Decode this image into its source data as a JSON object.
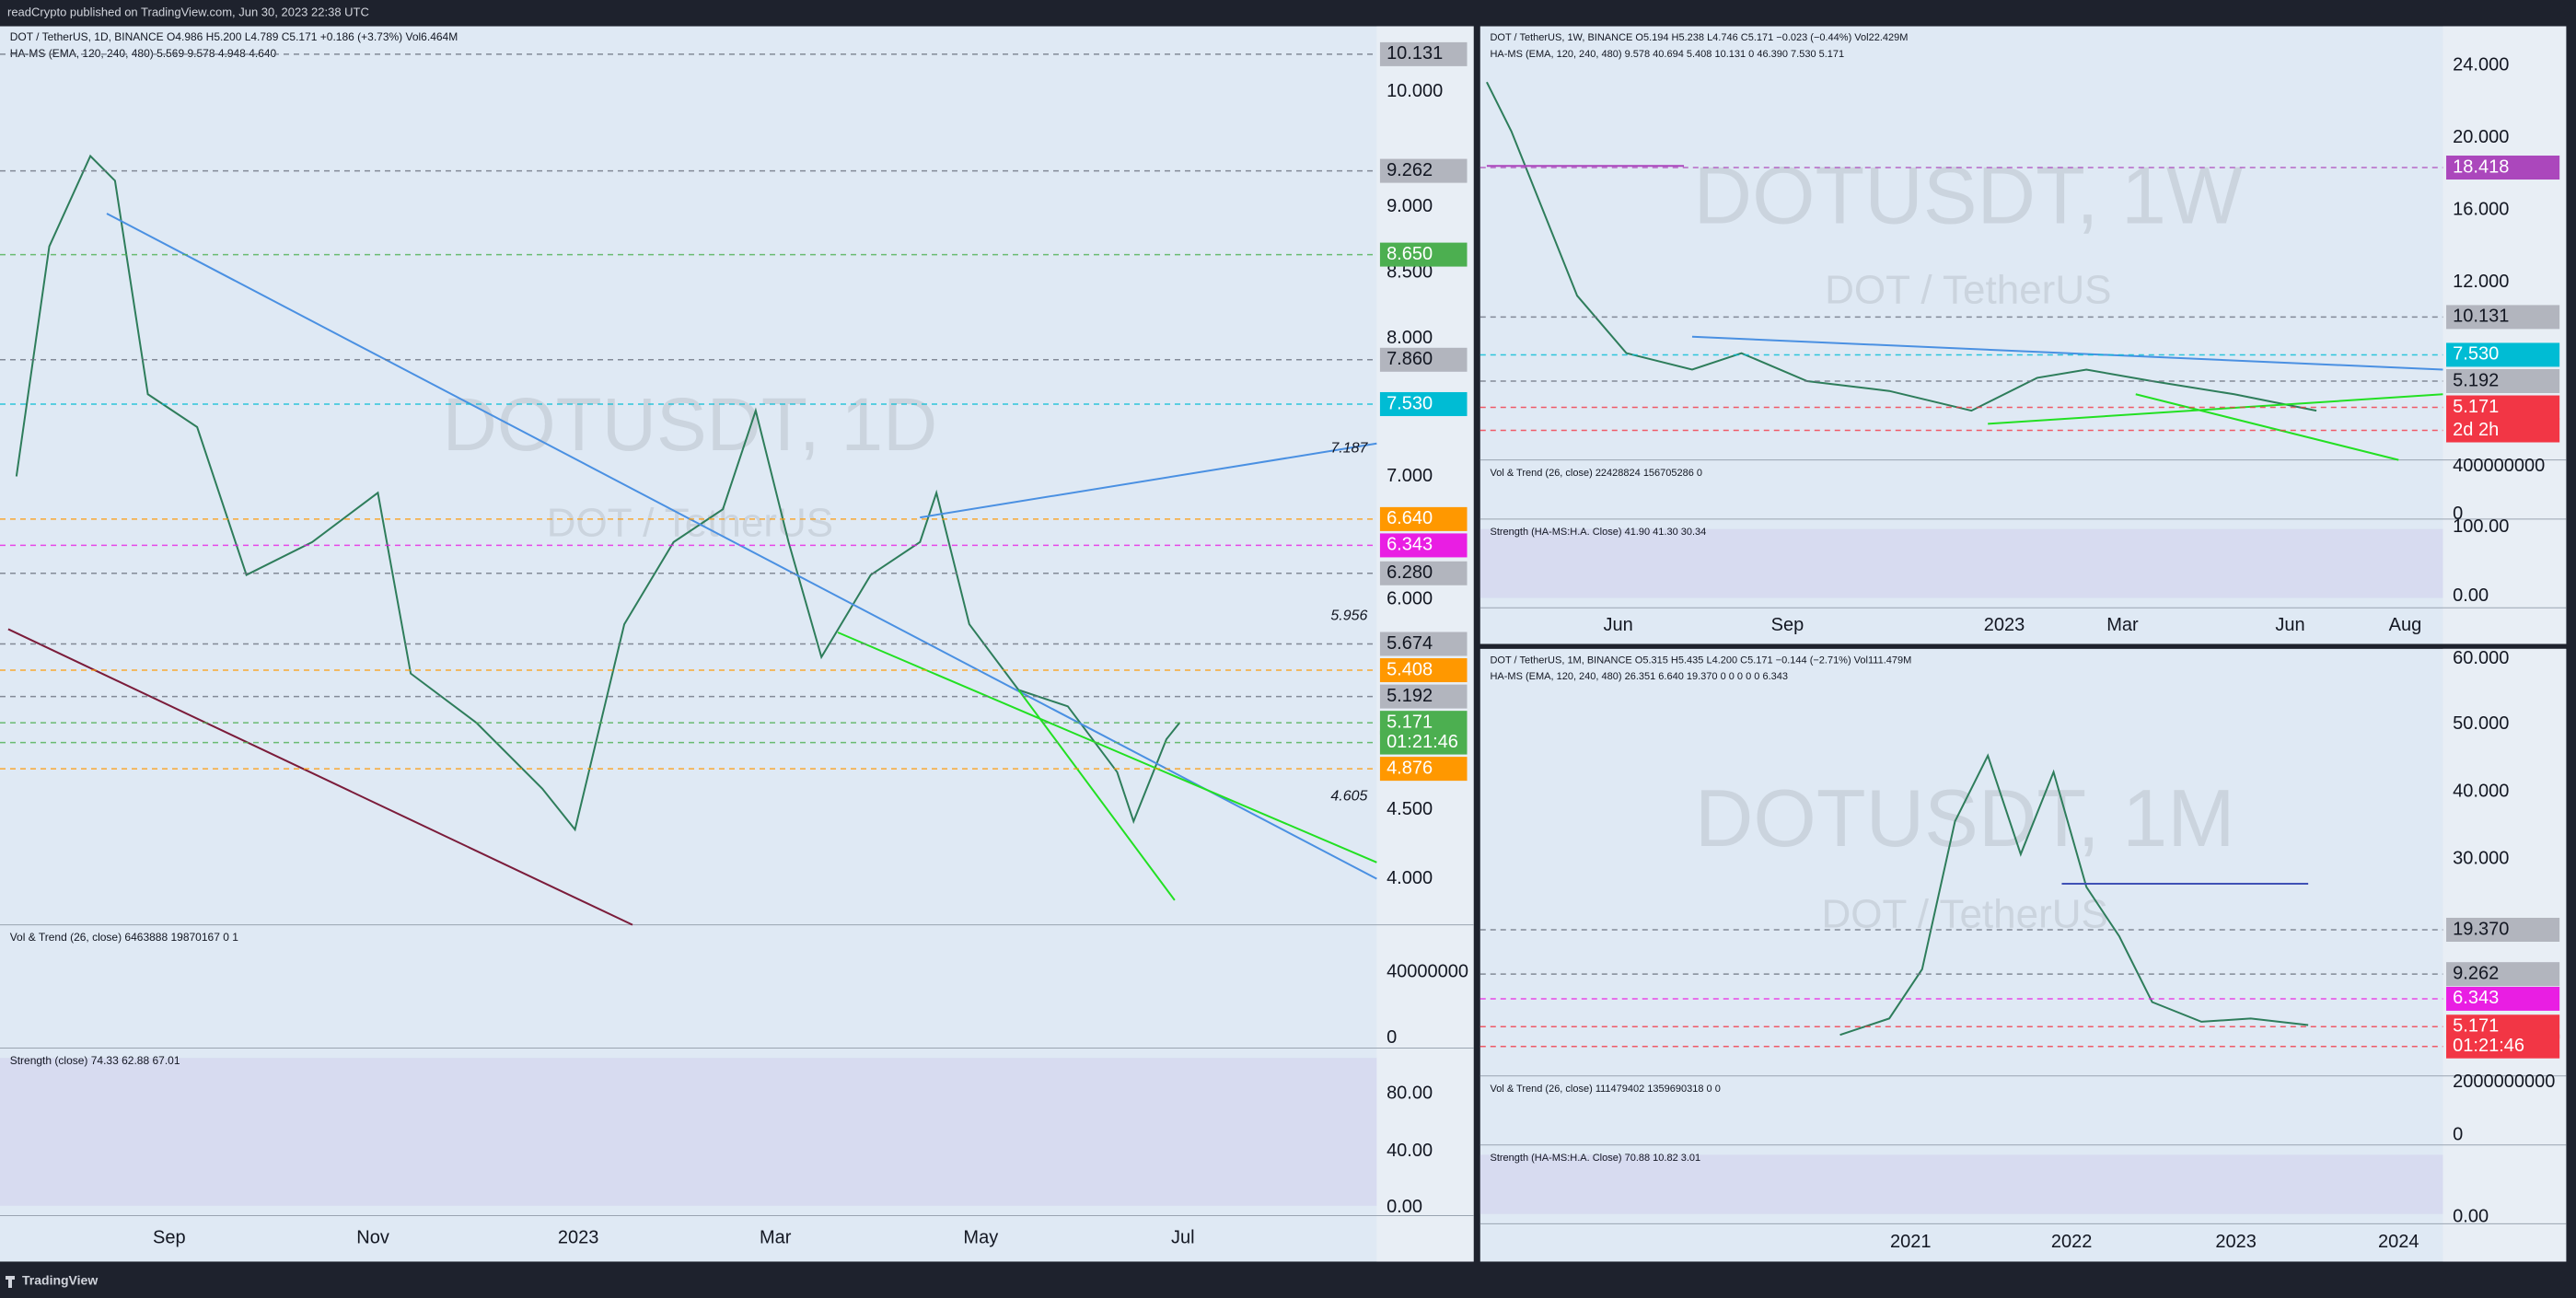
{
  "header": {
    "publisher": "readCrypto published on TradingView.com, Jun 30, 2023 22:38 UTC"
  },
  "panels": [
    {
      "legend": [
        "DOT / TetherUS, 1D, BINANCE  O4.986 H5.200 L4.789 C5.171 +0.186 (+3.73%) Vol6.464M",
        "HA-MS (EMA, 120, 240, 480)  5.569  9.578  4.948  4.640"
      ],
      "watermark": "DOTUSDT, 1D",
      "watermark_sub": "DOT / TetherUS",
      "price_labels": [
        {
          "text": "10.131",
          "color": "#b2b5be"
        },
        {
          "text": "9.262",
          "color": "#b2b5be"
        },
        {
          "text": "8.650",
          "color": "#4caf50"
        },
        {
          "text": "7.860",
          "color": "#b2b5be"
        },
        {
          "text": "7.530",
          "color": "#00bcd4"
        },
        {
          "text": "6.640",
          "color": "#ff9800"
        },
        {
          "text": "6.343",
          "color": "#e91ee3"
        },
        {
          "text": "6.280",
          "color": "#b2b5be"
        },
        {
          "text": "5.674",
          "color": "#b2b5be"
        },
        {
          "text": "5.408",
          "color": "#ff9800"
        },
        {
          "text": "5.192",
          "color": "#b2b5be"
        },
        {
          "text": "5.171",
          "color": "#4caf50"
        },
        {
          "text": "01:21:46",
          "color": "#4caf50"
        },
        {
          "text": "4.876",
          "color": "#ff9800"
        }
      ],
      "axis_labels": [
        "10.000",
        "9.000",
        "8.500",
        "8.000",
        "7.000",
        "6.000",
        "4.500",
        "4.000"
      ],
      "chart_labels": [
        "7.187",
        "5.956",
        "4.605"
      ],
      "time_labels": [
        "Sep",
        "Nov",
        "2023",
        "Mar",
        "May",
        "Jul"
      ],
      "vol_legend": "Vol & Trend (26, close)  6463888  19870167  0  1",
      "vol_axis": [
        "40000000",
        "0"
      ],
      "strength_legend": "Strength (close)  74.33  62.88  67.01",
      "strength_axis": [
        "80.00",
        "40.00",
        "0.00"
      ]
    },
    {
      "legend": [
        "DOT / TetherUS, 1W, BINANCE  O5.194 H5.238 L4.746 C5.171 −0.023 (−0.44%) Vol22.429M",
        "HA-MS (EMA, 120, 240, 480)  9.578  40.694  5.408  10.131  0  46.390  7.530  5.171"
      ],
      "watermark": "DOTUSDT, 1W",
      "watermark_sub": "DOT / TetherUS",
      "price_labels": [
        {
          "text": "18.418",
          "color": "#ab47bc"
        },
        {
          "text": "10.131",
          "color": "#b2b5be"
        },
        {
          "text": "7.530",
          "color": "#00bcd4"
        },
        {
          "text": "5.192",
          "color": "#b2b5be"
        },
        {
          "text": "5.171",
          "color": "#f23645"
        },
        {
          "text": "2d 2h",
          "color": "#f23645"
        }
      ],
      "axis_labels": [
        "24.000",
        "20.000",
        "16.000",
        "12.000"
      ],
      "chart_labels": [],
      "time_labels": [
        "Jun",
        "Sep",
        "2023",
        "Mar",
        "Jun",
        "Aug"
      ],
      "vol_legend": "Vol & Trend (26, close)  22428824  156705286  0",
      "vol_axis": [
        "400000000",
        "0"
      ],
      "strength_legend": "Strength (HA-MS:H.A. Close)  41.90  41.30  30.34",
      "strength_axis": [
        "100.00",
        "0.00"
      ]
    },
    {
      "legend": [
        "DOT / TetherUS, 1M, BINANCE  O5.315 H5.435 L4.200 C5.171 −0.144 (−2.71%) Vol111.479M",
        "HA-MS (EMA, 120, 240, 480)  26.351  6.640  19.370  0  0  0  0  0  6.343"
      ],
      "watermark": "DOTUSDT, 1M",
      "watermark_sub": "DOT / TetherUS",
      "price_labels": [
        {
          "text": "19.370",
          "color": "#b2b5be"
        },
        {
          "text": "9.262",
          "color": "#b2b5be"
        },
        {
          "text": "6.343",
          "color": "#e91ee3"
        },
        {
          "text": "5.171",
          "color": "#f23645"
        },
        {
          "text": "01:21:46",
          "color": "#f23645"
        }
      ],
      "axis_labels": [
        "60.000",
        "50.000",
        "40.000",
        "30.000"
      ],
      "chart_labels": [],
      "time_labels": [
        "2021",
        "2022",
        "2023",
        "2024"
      ],
      "vol_legend": "Vol & Trend (26, close)  111479402  1359690318  0  0",
      "vol_axis": [
        "2000000000",
        "0"
      ],
      "strength_legend": "Strength (HA-MS:H.A. Close)  70.88  10.82  3.01",
      "strength_axis": [
        "0.00"
      ]
    }
  ],
  "footer": {
    "brand": "TradingView"
  }
}
